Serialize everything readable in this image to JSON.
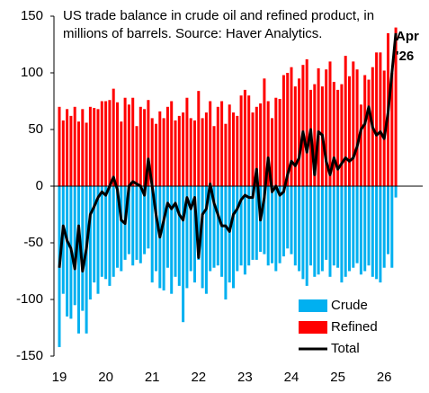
{
  "chart_data": {
    "type": "bar",
    "title": "US trade balance in crude oil and refined product, in millions of barrels. Source: Haver Analytics.",
    "annotation": "Apr '26",
    "categories": [
      "19",
      null,
      null,
      null,
      null,
      null,
      null,
      null,
      null,
      null,
      null,
      null,
      "20",
      null,
      null,
      null,
      null,
      null,
      null,
      null,
      null,
      null,
      null,
      null,
      "21",
      null,
      null,
      null,
      null,
      null,
      null,
      null,
      null,
      null,
      null,
      null,
      "22",
      null,
      null,
      null,
      null,
      null,
      null,
      null,
      null,
      null,
      null,
      null,
      "23",
      null,
      null,
      null,
      null,
      null,
      null,
      null,
      null,
      null,
      null,
      null,
      "24",
      null,
      null,
      null,
      null,
      null,
      null,
      null,
      null,
      null,
      null,
      null,
      "25",
      null,
      null,
      null,
      null,
      null,
      null,
      null,
      null,
      null,
      null,
      null,
      "26",
      null,
      null,
      null
    ],
    "series": [
      {
        "name": "Crude",
        "color": "#00b0f0",
        "type": "bar",
        "values": [
          -142,
          -95,
          -115,
          -117,
          -105,
          -130,
          -110,
          -130,
          -100,
          -85,
          -95,
          -80,
          -82,
          -88,
          -80,
          -72,
          -75,
          -65,
          -60,
          -70,
          -65,
          -68,
          -60,
          -55,
          -85,
          -75,
          -90,
          -92,
          -72,
          -95,
          -80,
          -88,
          -120,
          -90,
          -75,
          -85,
          -65,
          -90,
          -95,
          -75,
          -72,
          -70,
          -80,
          -100,
          -85,
          -90,
          -75,
          -70,
          -78,
          -70,
          -65,
          -65,
          -58,
          -60,
          -70,
          -68,
          -75,
          -68,
          -62,
          -55,
          -60,
          -70,
          -75,
          -82,
          -88,
          -70,
          -80,
          -78,
          -75,
          -65,
          -80,
          -70,
          -72,
          -85,
          -80,
          -75,
          -72,
          -68,
          -78,
          -75,
          -70,
          -80,
          -82,
          -85,
          -72,
          -60,
          -72,
          -10
        ]
      },
      {
        "name": "Refined",
        "color": "#ff0000",
        "type": "bar",
        "values": [
          70,
          58,
          68,
          62,
          70,
          57,
          68,
          56,
          70,
          69,
          68,
          75,
          75,
          76,
          86,
          74,
          57,
          78,
          72,
          78,
          53,
          70,
          68,
          76,
          60,
          55,
          66,
          60,
          70,
          75,
          58,
          62,
          65,
          78,
          60,
          58,
          84,
          60,
          65,
          75,
          53,
          70,
          75,
          55,
          72,
          65,
          62,
          80,
          85,
          80,
          65,
          70,
          73,
          95,
          75,
          60,
          78,
          77,
          98,
          100,
          105,
          88,
          95,
          107,
          112,
          85,
          90,
          104,
          88,
          103,
          110,
          92,
          85,
          90,
          115,
          97,
          110,
          103,
          72,
          98,
          94,
          105,
          118,
          118,
          102,
          135,
          100,
          140
        ]
      },
      {
        "name": "Total",
        "color": "#000000",
        "type": "line",
        "values": [
          -72,
          -35,
          -48,
          -55,
          -73,
          -35,
          -75,
          -55,
          -25,
          -18,
          -10,
          -5,
          -8,
          0,
          8,
          -3,
          -30,
          -33,
          0,
          4,
          2,
          0,
          -8,
          24,
          0,
          -25,
          -45,
          -30,
          -15,
          -20,
          -15,
          -25,
          -30,
          -10,
          -20,
          -10,
          -63,
          -25,
          -20,
          2,
          -15,
          -25,
          -35,
          -35,
          -40,
          -25,
          -20,
          -12,
          -8,
          -10,
          -10,
          15,
          -30,
          -10,
          25,
          -5,
          0,
          -8,
          -5,
          10,
          22,
          18,
          25,
          48,
          30,
          50,
          10,
          48,
          45,
          22,
          10,
          25,
          15,
          20,
          25,
          22,
          25,
          35,
          50,
          55,
          70,
          52,
          45,
          48,
          42,
          65,
          100,
          135
        ]
      }
    ],
    "ylim": [
      -150,
      150
    ],
    "yticks": [
      -150,
      -100,
      -50,
      0,
      50,
      100,
      150
    ],
    "grid": false,
    "legend": "lower right"
  }
}
